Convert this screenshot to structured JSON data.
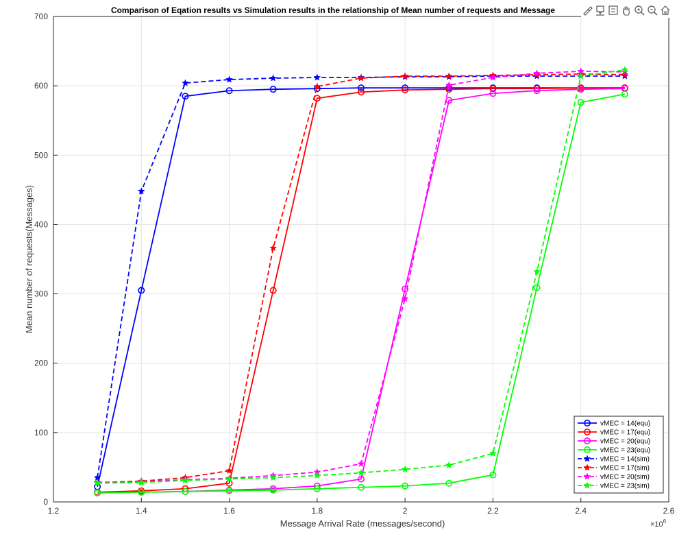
{
  "chart_data": {
    "type": "line",
    "title": "Comparison of Eqation results vs Simulation results in the relationship of Mean number of requests and Message",
    "xlabel": "Message Arrival Rate (messages/second)",
    "ylabel": "Mean number of requests(Messages)",
    "x_exponent_label": "×10",
    "x_exponent_power": "6",
    "xlim": [
      1.2,
      2.6
    ],
    "ylim": [
      0,
      700
    ],
    "x_ticks": [
      1.2,
      1.4,
      1.6,
      1.8,
      2,
      2.2,
      2.4,
      2.6
    ],
    "x_tick_labels": [
      "1.2",
      "1.4",
      "1.6",
      "1.8",
      "2",
      "2.2",
      "2.4",
      "2.6"
    ],
    "y_ticks": [
      0,
      100,
      200,
      300,
      400,
      500,
      600,
      700
    ],
    "y_tick_labels": [
      "0",
      "100",
      "200",
      "300",
      "400",
      "500",
      "600",
      "700"
    ],
    "grid": true,
    "legend_position": "bottom-right",
    "x": [
      1.3,
      1.4,
      1.5,
      1.6,
      1.7,
      1.8,
      1.9,
      2.0,
      2.1,
      2.2,
      2.3,
      2.4,
      2.5
    ],
    "series": [
      {
        "name": "vMEC = 14(equ)",
        "color": "#0000ff",
        "style": "solid",
        "marker": "circle",
        "values": [
          22,
          305,
          585,
          593,
          595,
          596,
          597,
          597,
          597,
          597,
          597,
          597,
          597
        ]
      },
      {
        "name": "vMEC = 17(equ)",
        "color": "#ff0000",
        "style": "solid",
        "marker": "circle",
        "values": [
          14,
          16,
          19,
          27,
          305,
          582,
          591,
          594,
          595,
          596,
          596,
          597,
          597
        ]
      },
      {
        "name": "vMEC = 20(equ)",
        "color": "#ff00ff",
        "style": "solid",
        "marker": "circle",
        "values": [
          13,
          14,
          15,
          17,
          19,
          23,
          33,
          307,
          579,
          589,
          593,
          595,
          596
        ]
      },
      {
        "name": "vMEC = 23(equ)",
        "color": "#00ff00",
        "style": "solid",
        "marker": "circle",
        "values": [
          13,
          14,
          15,
          16,
          17,
          19,
          21,
          23,
          27,
          39,
          309,
          576,
          588
        ]
      },
      {
        "name": "vMEC = 14(sim)",
        "color": "#0000ff",
        "style": "dashed",
        "marker": "star",
        "values": [
          35,
          448,
          604,
          609,
          611,
          612,
          612,
          613,
          613,
          614,
          614,
          614,
          614
        ]
      },
      {
        "name": "vMEC = 17(sim)",
        "color": "#ff0000",
        "style": "dashed",
        "marker": "star",
        "values": [
          28,
          30,
          35,
          45,
          366,
          599,
          611,
          614,
          614,
          615,
          616,
          617,
          616
        ]
      },
      {
        "name": "vMEC = 20(sim)",
        "color": "#ff00ff",
        "style": "dashed",
        "marker": "star",
        "values": [
          28,
          29,
          32,
          34,
          38,
          43,
          55,
          293,
          601,
          612,
          618,
          621,
          620
        ]
      },
      {
        "name": "vMEC = 23(sim)",
        "color": "#00ff00",
        "style": "dashed",
        "marker": "star",
        "values": [
          27,
          28,
          31,
          33,
          35,
          38,
          42,
          47,
          53,
          70,
          332,
          614,
          623
        ]
      }
    ]
  },
  "toolbar": {
    "icons": [
      "brush-icon",
      "data-tip-icon",
      "legend-icon",
      "pan-icon",
      "zoom-in-icon",
      "zoom-out-icon",
      "home-icon"
    ]
  }
}
